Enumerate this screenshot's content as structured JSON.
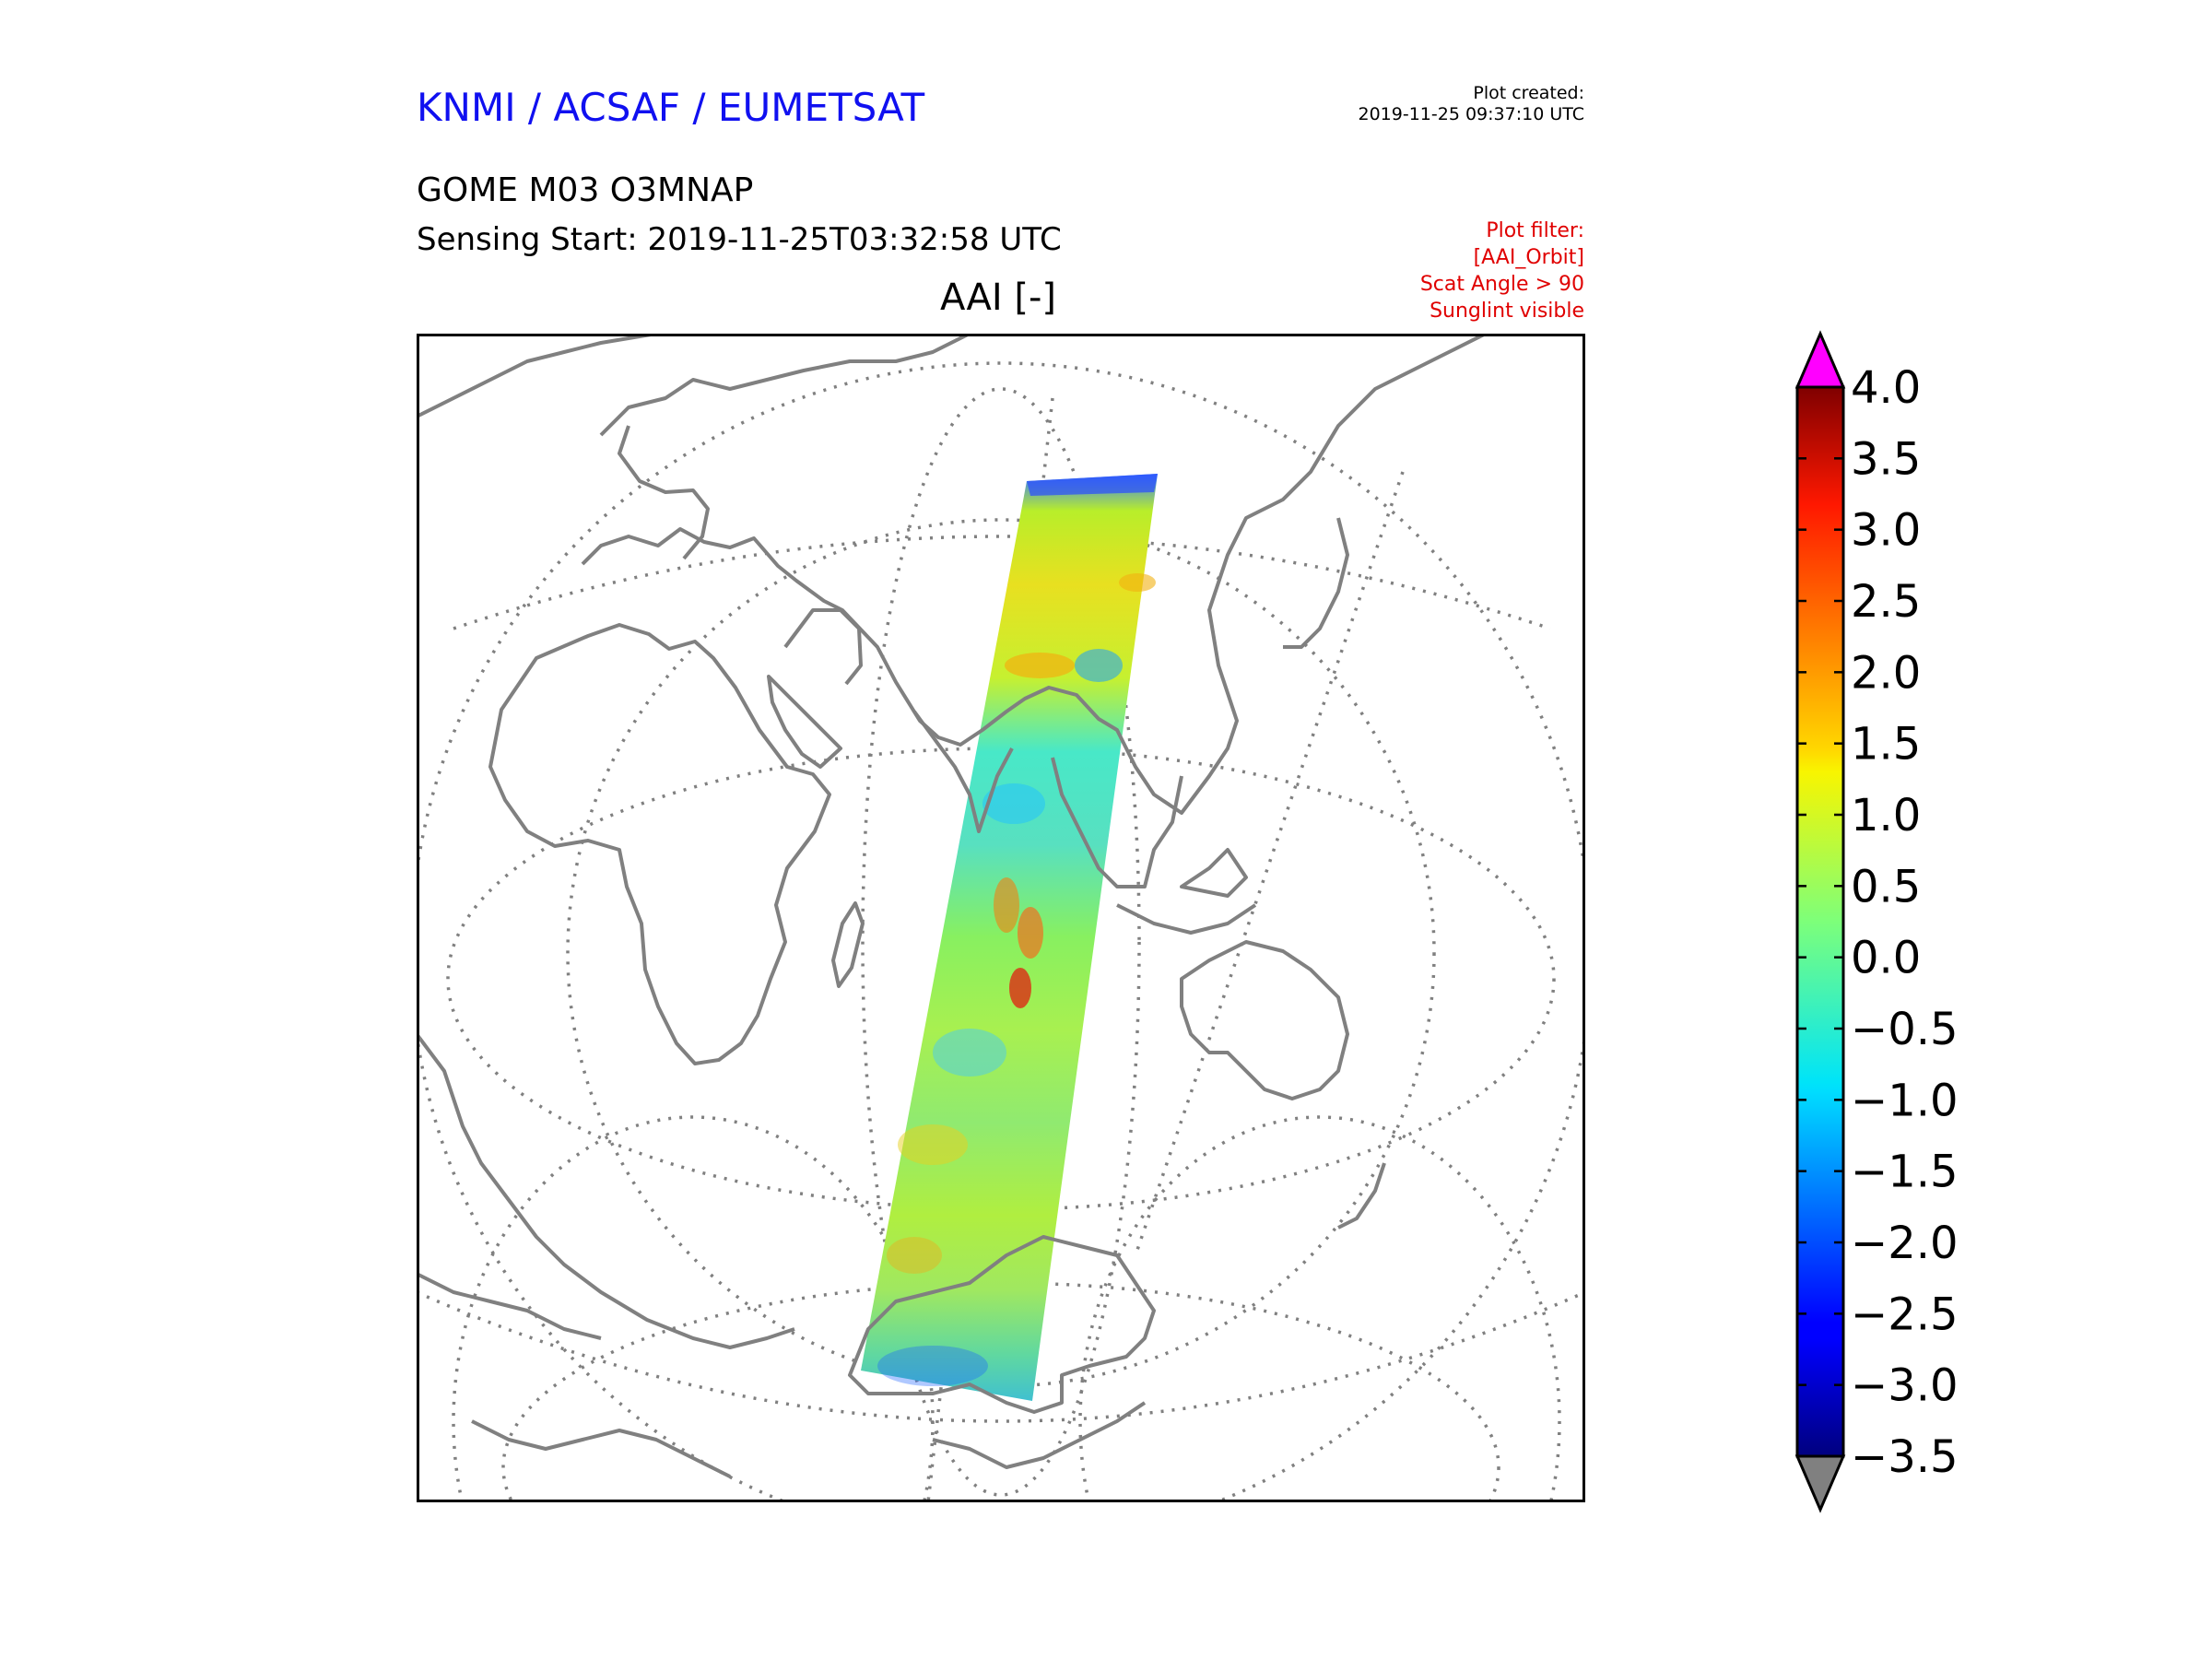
{
  "header": {
    "organization": "KNMI / ACSAF / EUMETSAT",
    "plot_created_label": "Plot created:",
    "plot_created_value": "2019-11-25 09:37:10 UTC",
    "product": "GOME M03 O3MNAP",
    "sensing_start": "Sensing Start: 2019-11-25T03:32:58 UTC",
    "filter_lines": [
      "Plot filter:",
      "[AAI_Orbit]",
      "Scat Angle > 90",
      "Sunglint visible"
    ]
  },
  "map": {
    "title": "AAI [-]",
    "projection": "orthographic",
    "coastline_color": "#808080",
    "graticule_color": "#808080"
  },
  "colorbar": {
    "ticks": [
      "4.0",
      "3.5",
      "3.0",
      "2.5",
      "2.0",
      "1.5",
      "1.0",
      "0.5",
      "0.0",
      "−0.5",
      "−1.0",
      "−1.5",
      "−2.0",
      "−2.5",
      "−3.0",
      "−3.5"
    ],
    "min": -3.5,
    "max": 4.0,
    "over_color": "#ff00ff",
    "under_color": "#808080",
    "colormap": "jet"
  },
  "chart_data": {
    "type": "heatmap",
    "title": "AAI [-]",
    "colorbar_range": [
      -3.5,
      4.0
    ],
    "colorbar_ticks": [
      4.0,
      3.5,
      3.0,
      2.5,
      2.0,
      1.5,
      1.0,
      0.5,
      0.0,
      -0.5,
      -1.0,
      -1.5,
      -2.0,
      -2.5,
      -3.0,
      -3.5
    ]
  }
}
